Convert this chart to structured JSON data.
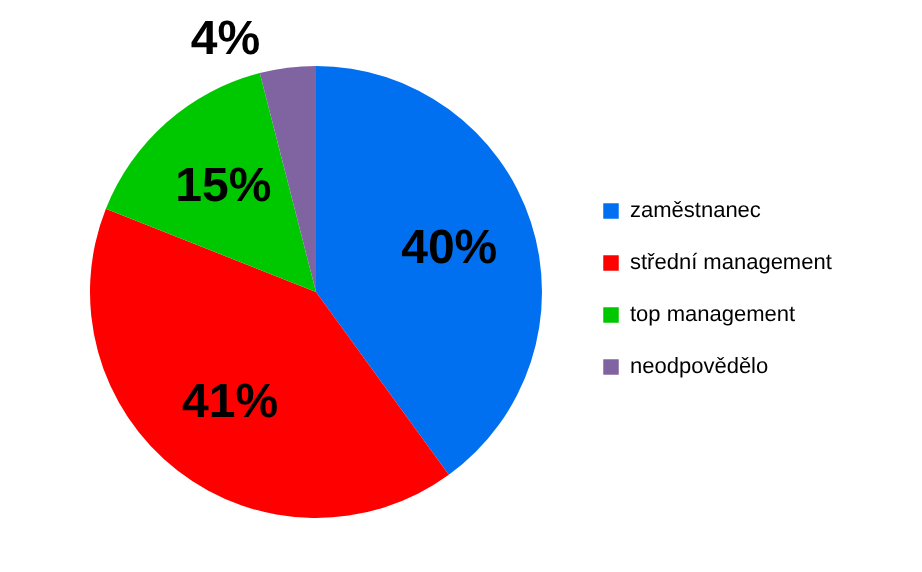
{
  "chart_data": {
    "type": "pie",
    "categories": [
      "zaměstnanec",
      "střední management",
      "top management",
      "neodpovědělo"
    ],
    "values": [
      40,
      41,
      15,
      4
    ],
    "colors": [
      "#0070f0",
      "#ff0000",
      "#00c800",
      "#8064a2"
    ],
    "value_labels": [
      "40%",
      "41%",
      "15%",
      "4%"
    ],
    "legend": "right"
  }
}
